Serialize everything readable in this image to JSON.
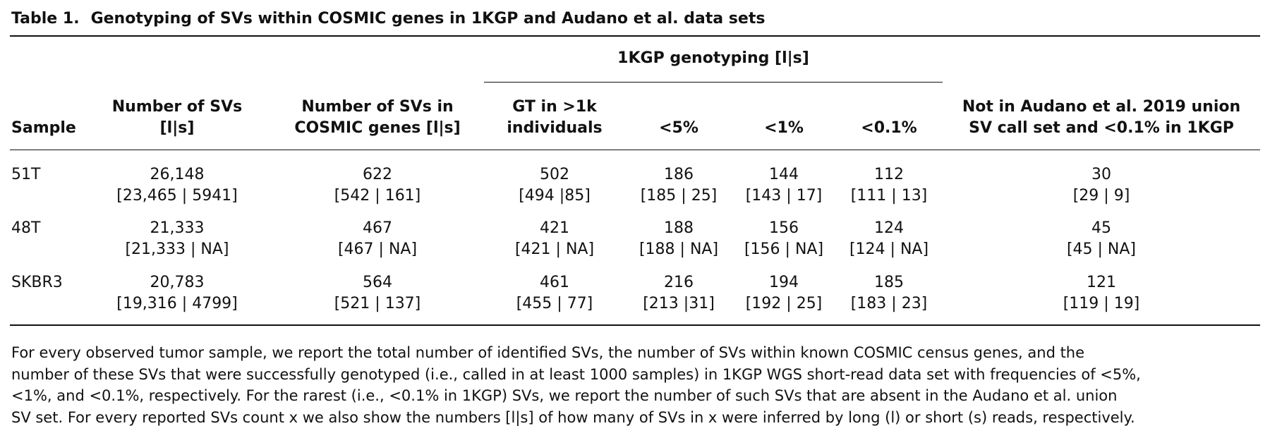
{
  "caption": {
    "label": "Table 1.",
    "title": "Genotyping of SVs within COSMIC genes in 1KGP and Audano et al. data sets"
  },
  "header": {
    "group": "1KGP genotyping [l|s]",
    "sample": "Sample",
    "num_svs_1": "Number of SVs",
    "num_svs_2": "[l|s]",
    "cosmic_1": "Number of SVs in",
    "cosmic_2": "COSMIC genes [l|s]",
    "gt_1": "GT in >1k",
    "gt_2": "individuals",
    "lt5": "<5%",
    "lt1": "<1%",
    "lt01": "<0.1%",
    "audano_1": "Not in Audano et al. 2019 union",
    "audano_2": "SV call set and <0.1% in 1KGP"
  },
  "rows": [
    {
      "sample": "51T",
      "num_svs": "26,148",
      "num_svs_ls": "[23,465 | 5941]",
      "cosmic": "622",
      "cosmic_ls": "[542 | 161]",
      "gt": "502",
      "gt_ls": "[494 |85]",
      "lt5": "186",
      "lt5_ls": "[185 | 25]",
      "lt1": "144",
      "lt1_ls": "[143 | 17]",
      "lt01": "112",
      "lt01_ls": "[111 | 13]",
      "audano": "30",
      "audano_ls": "[29 | 9]"
    },
    {
      "sample": "48T",
      "num_svs": "21,333",
      "num_svs_ls": "[21,333 | NA]",
      "cosmic": "467",
      "cosmic_ls": "[467 | NA]",
      "gt": "421",
      "gt_ls": "[421 | NA]",
      "lt5": "188",
      "lt5_ls": "[188 | NA]",
      "lt1": "156",
      "lt1_ls": "[156 | NA]",
      "lt01": "124",
      "lt01_ls": "[124 | NA]",
      "audano": "45",
      "audano_ls": "[45 | NA]"
    },
    {
      "sample": "SKBR3",
      "num_svs": "20,783",
      "num_svs_ls": "[19,316 | 4799]",
      "cosmic": "564",
      "cosmic_ls": "[521 | 137]",
      "gt": "461",
      "gt_ls": "[455 | 77]",
      "lt5": "216",
      "lt5_ls": "[213 |31]",
      "lt1": "194",
      "lt1_ls": "[192 | 25]",
      "lt01": "185",
      "lt01_ls": "[183 | 23]",
      "audano": "121",
      "audano_ls": "[119 | 19]"
    }
  ],
  "footnote": {
    "line1": "For every observed tumor sample, we report the total number of identified SVs, the number of SVs within known COSMIC census genes, and the",
    "line2": "number of these SVs that were successfully genotyped (i.e., called in at least 1000 samples) in 1KGP WGS short-read data set with frequencies of <5%,",
    "line3": "<1%, and <0.1%, respectively. For the rarest (i.e., <0.1% in 1KGP) SVs, we report the number of such SVs that are absent in the Audano et al. union",
    "line4": "SV set. For every reported SVs count x we also show the numbers [l|s] of how many of SVs in x were inferred by long (l) or short (s) reads, respectively."
  }
}
